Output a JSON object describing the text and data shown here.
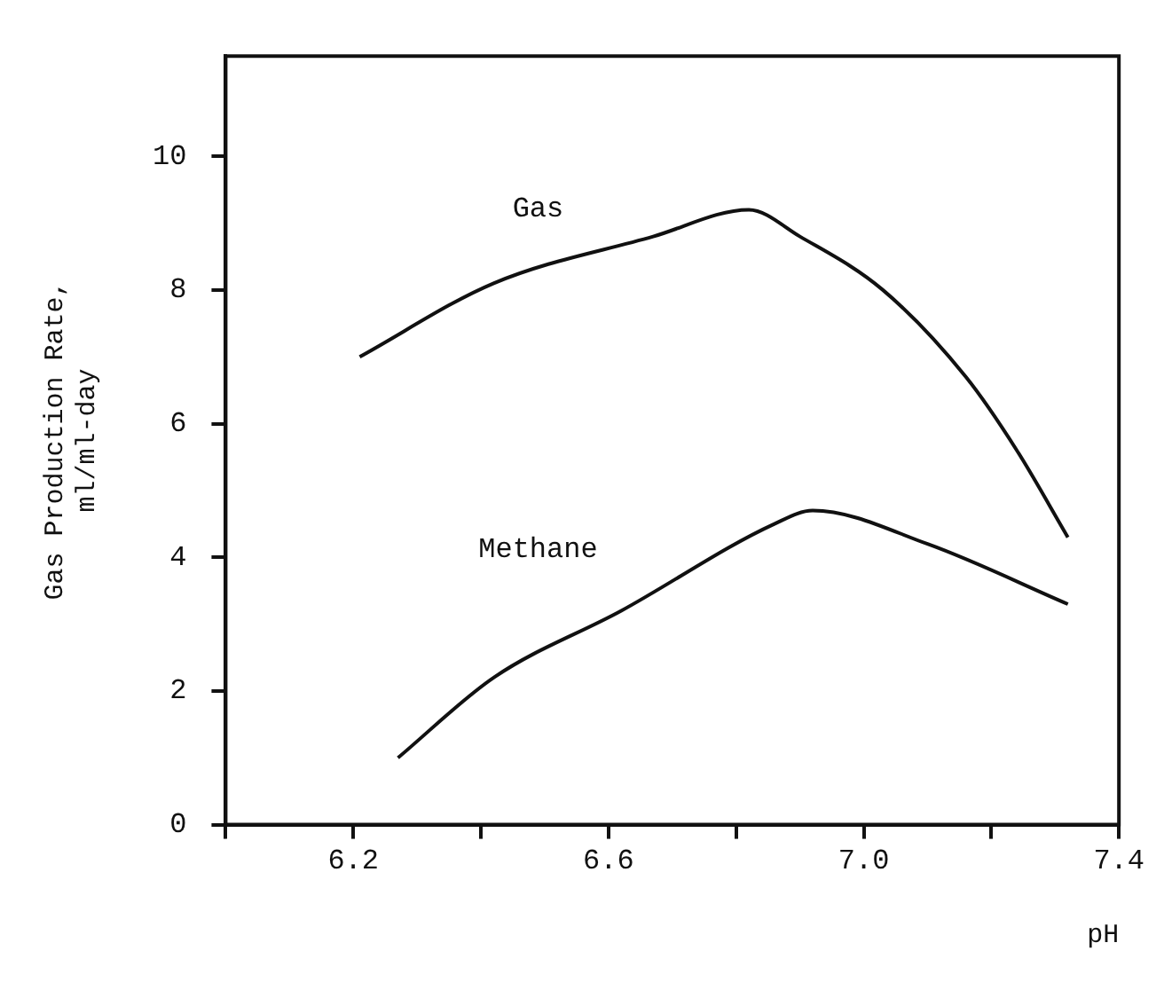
{
  "chart_data": {
    "type": "line",
    "xlabel": "pH",
    "ylabel": "Gas Production Rate, ml/ml-day",
    "xlim": [
      6.0,
      7.4
    ],
    "xticks": [
      {
        "value": 6.0,
        "label": null
      },
      6.2,
      {
        "value": 6.4,
        "label": null
      },
      6.6,
      {
        "value": 6.8,
        "label": null
      },
      {
        "value": 7.0,
        "label": "7.0"
      },
      {
        "value": 7.2,
        "label": null
      },
      7.4
    ],
    "ylim": [
      0,
      11.5
    ],
    "yticks": [
      0,
      2,
      4,
      6,
      8,
      10
    ],
    "grid": false,
    "legend": false,
    "marker": "none",
    "line_style": "solid",
    "series": [
      {
        "name": "Gas",
        "color": "#111111",
        "x": [
          6.21,
          6.42,
          6.67,
          6.82,
          6.9,
          7.03,
          7.16,
          7.24,
          7.32
        ],
        "values": [
          7.0,
          8.1,
          8.8,
          9.2,
          8.8,
          8.0,
          6.7,
          5.6,
          4.3
        ]
      },
      {
        "name": "Methane",
        "color": "#111111",
        "x": [
          6.27,
          6.42,
          6.62,
          6.86,
          6.92,
          7.1,
          7.32
        ],
        "values": [
          1.0,
          2.2,
          3.2,
          4.5,
          4.7,
          4.2,
          3.3
        ]
      }
    ]
  }
}
